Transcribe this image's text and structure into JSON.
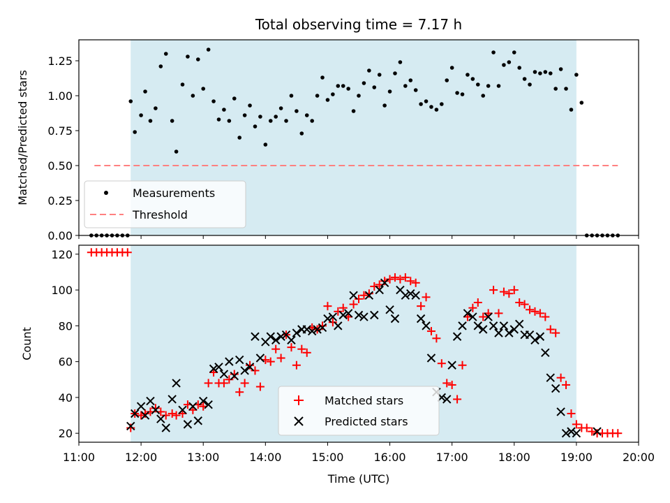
{
  "chart_data": [
    {
      "type": "scatter",
      "title": "Total observing time = 7.17 h",
      "ylabel": "Matched/Predicted stars",
      "xlabel": "",
      "xlim": [
        "11:00",
        "20:00"
      ],
      "ylim": [
        0,
        1.4
      ],
      "yticks": [
        "0.00",
        "0.25",
        "0.50",
        "0.75",
        "1.00",
        "1.25"
      ],
      "legend_position": "lower-left",
      "observing_window": [
        "11:50",
        "19:00"
      ],
      "colors": {
        "window": "#add8e6",
        "points": "#000000",
        "threshold": "#ff8080"
      },
      "series": [
        {
          "name": "Measurements",
          "x": [
            "11:12",
            "11:17",
            "11:22",
            "11:27",
            "11:32",
            "11:37",
            "11:42",
            "11:47",
            "11:50",
            "11:54",
            "12:00",
            "12:04",
            "12:09",
            "12:14",
            "12:19",
            "12:24",
            "12:30",
            "12:34",
            "12:40",
            "12:45",
            "12:50",
            "12:55",
            "13:00",
            "13:05",
            "13:10",
            "13:15",
            "13:20",
            "13:25",
            "13:30",
            "13:35",
            "13:40",
            "13:45",
            "13:50",
            "13:55",
            "14:00",
            "14:05",
            "14:10",
            "14:15",
            "14:20",
            "14:25",
            "14:30",
            "14:35",
            "14:40",
            "14:45",
            "14:50",
            "14:55",
            "15:00",
            "15:05",
            "15:10",
            "15:15",
            "15:20",
            "15:25",
            "15:30",
            "15:35",
            "15:40",
            "15:45",
            "15:50",
            "15:55",
            "16:00",
            "16:05",
            "16:10",
            "16:15",
            "16:20",
            "16:25",
            "16:30",
            "16:35",
            "16:40",
            "16:45",
            "16:50",
            "16:55",
            "17:00",
            "17:05",
            "17:10",
            "17:15",
            "17:20",
            "17:25",
            "17:30",
            "17:35",
            "17:40",
            "17:45",
            "17:50",
            "17:55",
            "18:00",
            "18:05",
            "18:10",
            "18:15",
            "18:20",
            "18:25",
            "18:30",
            "18:35",
            "18:40",
            "18:45",
            "18:50",
            "18:55",
            "19:00",
            "19:05",
            "19:10",
            "19:15",
            "19:20",
            "19:25",
            "19:30",
            "19:35",
            "19:40"
          ],
          "y": [
            0,
            0,
            0,
            0,
            0,
            0,
            0,
            0,
            0.96,
            0.74,
            0.86,
            1.03,
            0.82,
            0.91,
            1.21,
            1.3,
            0.82,
            0.6,
            1.08,
            1.28,
            1.0,
            1.26,
            1.05,
            1.33,
            0.96,
            0.83,
            0.9,
            0.82,
            0.98,
            0.7,
            0.86,
            0.93,
            0.78,
            0.85,
            0.65,
            0.82,
            0.85,
            0.91,
            0.82,
            1.0,
            0.89,
            0.73,
            0.86,
            0.82,
            1.0,
            1.13,
            0.97,
            1.01,
            1.07,
            1.07,
            1.05,
            0.89,
            1.0,
            1.09,
            1.18,
            1.06,
            1.15,
            0.93,
            1.03,
            1.16,
            1.24,
            1.07,
            1.11,
            1.04,
            0.94,
            0.96,
            0.92,
            0.9,
            0.94,
            1.11,
            1.2,
            1.02,
            1.01,
            1.15,
            1.12,
            1.08,
            1.0,
            1.07,
            1.31,
            1.07,
            1.22,
            1.24,
            1.31,
            1.2,
            1.12,
            1.08,
            1.17,
            1.16,
            1.17,
            1.16,
            1.05,
            1.19,
            1.05,
            0.9,
            1.15,
            0.95,
            0,
            0,
            0,
            0,
            0,
            0,
            0
          ]
        },
        {
          "name": "Threshold",
          "x": [
            "11:15",
            "19:40"
          ],
          "y": [
            0.5,
            0.5
          ]
        }
      ]
    },
    {
      "type": "scatter",
      "title": "",
      "ylabel": "Count",
      "xlabel": "Time (UTC)",
      "xlim": [
        "11:00",
        "20:00"
      ],
      "ylim": [
        15,
        125
      ],
      "yticks": [
        "20",
        "40",
        "60",
        "80",
        "100",
        "120"
      ],
      "xticks": [
        "11:00",
        "12:00",
        "13:00",
        "14:00",
        "15:00",
        "16:00",
        "17:00",
        "18:00",
        "19:00",
        "20:00"
      ],
      "legend_position": "lower-center",
      "observing_window": [
        "11:50",
        "19:00"
      ],
      "colors": {
        "window": "#add8e6",
        "matched": "#ff0000",
        "predicted": "#000000"
      },
      "series": [
        {
          "name": "Matched stars",
          "x": [
            "11:12",
            "11:17",
            "11:22",
            "11:27",
            "11:32",
            "11:37",
            "11:42",
            "11:47",
            "11:50",
            "11:54",
            "12:00",
            "12:04",
            "12:09",
            "12:14",
            "12:19",
            "12:24",
            "12:30",
            "12:34",
            "12:40",
            "12:45",
            "12:50",
            "12:55",
            "13:00",
            "13:05",
            "13:10",
            "13:15",
            "13:20",
            "13:25",
            "13:30",
            "13:35",
            "13:40",
            "13:45",
            "13:50",
            "13:55",
            "14:00",
            "14:05",
            "14:10",
            "14:15",
            "14:20",
            "14:25",
            "14:30",
            "14:35",
            "14:40",
            "14:45",
            "14:50",
            "14:55",
            "15:00",
            "15:05",
            "15:10",
            "15:15",
            "15:20",
            "15:25",
            "15:30",
            "15:35",
            "15:40",
            "15:45",
            "15:50",
            "15:55",
            "16:00",
            "16:05",
            "16:10",
            "16:15",
            "16:20",
            "16:25",
            "16:30",
            "16:35",
            "16:40",
            "16:45",
            "16:50",
            "16:55",
            "17:00",
            "17:05",
            "17:10",
            "17:15",
            "17:20",
            "17:25",
            "17:30",
            "17:35",
            "17:40",
            "17:45",
            "17:50",
            "17:55",
            "18:00",
            "18:05",
            "18:10",
            "18:15",
            "18:20",
            "18:25",
            "18:30",
            "18:35",
            "18:40",
            "18:45",
            "18:50",
            "18:55",
            "19:00",
            "19:05",
            "19:10",
            "19:15",
            "19:20",
            "19:25",
            "19:30",
            "19:35",
            "19:40"
          ],
          "y": [
            121,
            121,
            121,
            121,
            121,
            121,
            121,
            121,
            23,
            31,
            30,
            31,
            32,
            34,
            32,
            30,
            31,
            30,
            31,
            36,
            33,
            36,
            35,
            48,
            54,
            48,
            48,
            50,
            53,
            43,
            48,
            58,
            55,
            46,
            61,
            60,
            67,
            62,
            75,
            68,
            58,
            67,
            65,
            79,
            78,
            80,
            91,
            82,
            88,
            90,
            85,
            92,
            95,
            97,
            98,
            102,
            103,
            105,
            106,
            107,
            106,
            107,
            105,
            104,
            91,
            96,
            77,
            73,
            59,
            48,
            47,
            39,
            58,
            85,
            90,
            93,
            85,
            87,
            100,
            87,
            99,
            98,
            100,
            93,
            92,
            89,
            88,
            87,
            85,
            78,
            76,
            51,
            47,
            31,
            25,
            23,
            23,
            21,
            20,
            20,
            20,
            20,
            20
          ]
        },
        {
          "name": "Predicted stars",
          "x": [
            "11:50",
            "11:54",
            "12:00",
            "12:04",
            "12:09",
            "12:14",
            "12:19",
            "12:24",
            "12:30",
            "12:34",
            "12:40",
            "12:45",
            "12:50",
            "12:55",
            "13:00",
            "13:05",
            "13:10",
            "13:15",
            "13:20",
            "13:25",
            "13:30",
            "13:35",
            "13:40",
            "13:45",
            "13:50",
            "13:55",
            "14:00",
            "14:05",
            "14:10",
            "14:15",
            "14:20",
            "14:25",
            "14:30",
            "14:35",
            "14:40",
            "14:45",
            "14:50",
            "14:55",
            "15:00",
            "15:05",
            "15:10",
            "15:15",
            "15:20",
            "15:25",
            "15:30",
            "15:35",
            "15:40",
            "15:45",
            "15:50",
            "15:55",
            "16:00",
            "16:05",
            "16:10",
            "16:15",
            "16:20",
            "16:25",
            "16:30",
            "16:35",
            "16:40",
            "16:45",
            "16:50",
            "16:55",
            "17:00",
            "17:05",
            "17:10",
            "17:15",
            "17:20",
            "17:25",
            "17:30",
            "17:35",
            "17:40",
            "17:45",
            "17:50",
            "17:55",
            "18:00",
            "18:05",
            "18:10",
            "18:15",
            "18:20",
            "18:25",
            "18:30",
            "18:35",
            "18:40",
            "18:45",
            "18:50",
            "18:55",
            "19:00",
            "19:20"
          ],
          "y": [
            24,
            31,
            35,
            30,
            38,
            33,
            28,
            23,
            39,
            48,
            33,
            25,
            35,
            27,
            38,
            36,
            56,
            57,
            53,
            60,
            52,
            61,
            55,
            57,
            74,
            62,
            71,
            74,
            72,
            74,
            75,
            72,
            76,
            78,
            78,
            77,
            78,
            79,
            84,
            85,
            80,
            86,
            87,
            97,
            86,
            85,
            97,
            86,
            100,
            104,
            89,
            84,
            100,
            97,
            98,
            97,
            84,
            80,
            62,
            43,
            40,
            39,
            58,
            74,
            80,
            87,
            85,
            80,
            78,
            85,
            80,
            76,
            80,
            76,
            78,
            81,
            75,
            75,
            72,
            74,
            65,
            51,
            45,
            32,
            20,
            21,
            20,
            21
          ]
        }
      ]
    }
  ]
}
